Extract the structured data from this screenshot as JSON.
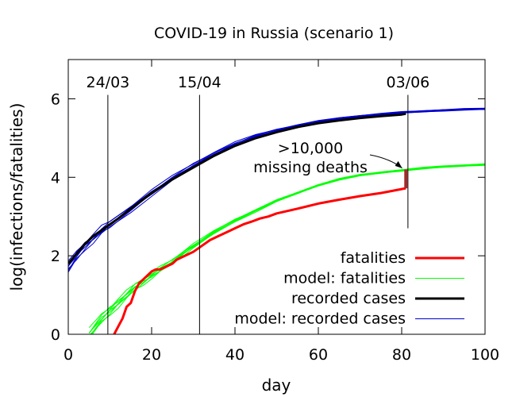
{
  "chart_data": {
    "type": "line",
    "title": "COVID-19 in Russia (scenario 1)",
    "xlabel": "day",
    "ylabel": "log(infections/fatalities)",
    "xlim": [
      0,
      100
    ],
    "ylim": [
      0,
      7
    ],
    "xticks": [
      0,
      20,
      40,
      60,
      80,
      100
    ],
    "yticks": [
      0,
      2,
      4,
      6
    ],
    "grid": false,
    "legend_position": "bottom-right",
    "vlines": [
      {
        "x": 9.5,
        "label": "24/03"
      },
      {
        "x": 31.5,
        "label": "15/04"
      },
      {
        "x": 81.5,
        "label": "03/06"
      }
    ],
    "annotation": {
      "lines": [
        ">10,000",
        "missing deaths"
      ],
      "arrow_to": [
        80.5,
        4.15
      ],
      "gap": {
        "x": 81,
        "y_from": 3.72,
        "y_to": 4.2
      }
    },
    "series": [
      {
        "name": "fatalities",
        "color": "#ff0000",
        "width": 3,
        "x": [
          11,
          12,
          13,
          14,
          15,
          16,
          17,
          18,
          19,
          20,
          21,
          22,
          23,
          24,
          25,
          26,
          28,
          30,
          32,
          34,
          36,
          38,
          40,
          42,
          44,
          46,
          48,
          50,
          55,
          60,
          65,
          70,
          75,
          80,
          81
        ],
        "y": [
          0.0,
          0.2,
          0.4,
          0.7,
          0.8,
          1.1,
          1.3,
          1.4,
          1.5,
          1.6,
          1.65,
          1.65,
          1.7,
          1.75,
          1.8,
          1.9,
          2.0,
          2.1,
          2.25,
          2.4,
          2.5,
          2.6,
          2.7,
          2.8,
          2.87,
          2.95,
          3.0,
          3.08,
          3.2,
          3.33,
          3.43,
          3.52,
          3.6,
          3.7,
          3.72
        ]
      },
      {
        "name": "model: fatalities",
        "color": "#00ff00",
        "width": 1,
        "x": [
          5,
          8,
          10,
          12,
          14,
          16,
          18,
          20,
          22,
          25,
          28,
          30,
          35,
          40,
          45,
          50,
          55,
          60,
          65,
          70,
          75,
          80,
          85,
          90,
          95,
          100
        ],
        "y": [
          0.0,
          0.4,
          0.6,
          0.8,
          1.0,
          1.2,
          1.35,
          1.5,
          1.65,
          1.85,
          2.1,
          2.25,
          2.6,
          2.9,
          3.15,
          3.4,
          3.6,
          3.8,
          3.95,
          4.05,
          4.12,
          4.18,
          4.23,
          4.27,
          4.3,
          4.33
        ]
      },
      {
        "name": "recorded cases",
        "color": "#000000",
        "width": 3,
        "x": [
          0,
          2,
          4,
          6,
          8,
          10,
          12,
          15,
          20,
          25,
          30,
          35,
          40,
          45,
          50,
          55,
          60,
          65,
          70,
          75,
          80,
          81
        ],
        "y": [
          1.8,
          2.05,
          2.3,
          2.5,
          2.65,
          2.8,
          2.95,
          3.2,
          3.6,
          3.95,
          4.25,
          4.55,
          4.8,
          5.0,
          5.15,
          5.28,
          5.38,
          5.45,
          5.51,
          5.56,
          5.6,
          5.62
        ]
      },
      {
        "name": "model: recorded cases",
        "color": "#0000cc",
        "width": 1,
        "x": [
          0,
          2,
          4,
          6,
          8,
          10,
          15,
          20,
          25,
          30,
          35,
          40,
          45,
          50,
          55,
          60,
          65,
          70,
          75,
          80,
          85,
          90,
          95,
          100
        ],
        "y": [
          1.7,
          2.0,
          2.25,
          2.45,
          2.65,
          2.8,
          3.2,
          3.6,
          3.97,
          4.3,
          4.6,
          4.85,
          5.05,
          5.2,
          5.32,
          5.42,
          5.5,
          5.56,
          5.61,
          5.65,
          5.68,
          5.71,
          5.73,
          5.74
        ]
      }
    ]
  }
}
